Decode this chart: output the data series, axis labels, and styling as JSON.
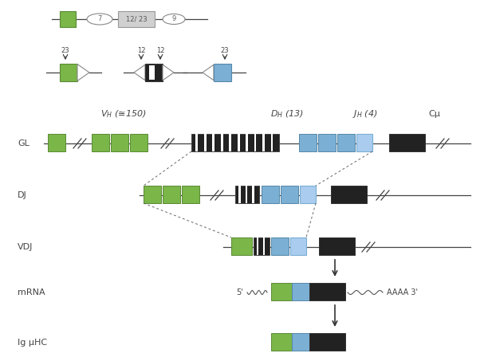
{
  "bg_color": "#ffffff",
  "green_color": "#7ab648",
  "blue_color": "#7bafd4",
  "blue_light": "#aaccee",
  "dark_color": "#222222",
  "light_gray": "#d0d0d0",
  "line_color": "#444444",
  "text_color": "#444444",
  "labels": {
    "GL": "GL",
    "DJ": "DJ",
    "VDJ": "VDJ",
    "mRNA": "mRNA",
    "IgHC": "Ig μHC",
    "VH": "V$_H$ (≅150)",
    "DH": "D$_H$ (13)",
    "JH": "J$_H$ (4)",
    "Cu": "Cμ"
  }
}
